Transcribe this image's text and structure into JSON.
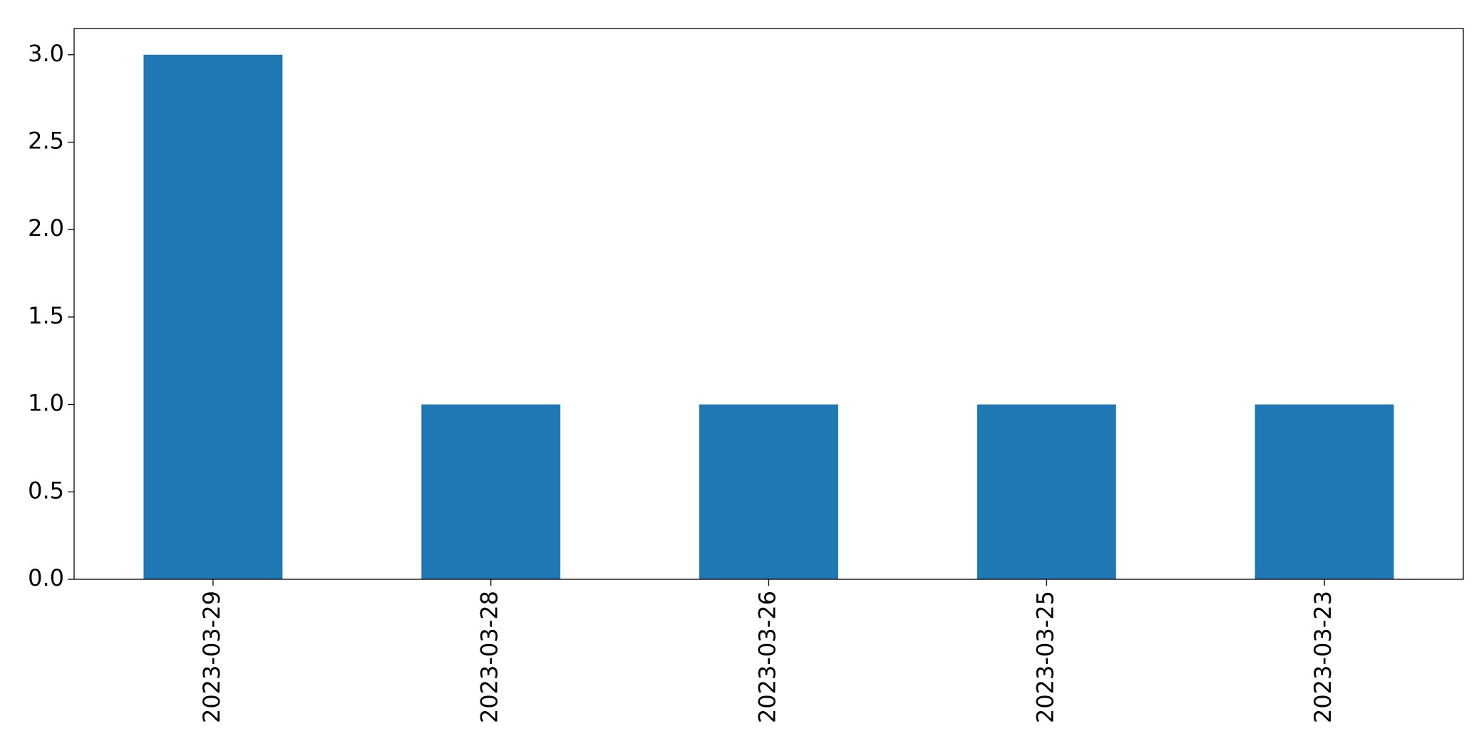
{
  "chart_data": {
    "type": "bar",
    "categories": [
      "2023-03-29",
      "2023-03-28",
      "2023-03-26",
      "2023-03-25",
      "2023-03-23"
    ],
    "values": [
      3,
      1,
      1,
      1,
      1
    ],
    "color": "#1f77b4",
    "ylim": [
      0,
      3.15
    ],
    "yticks": [
      {
        "value": 0,
        "label": "0.0"
      },
      0.5,
      {
        "value": 1,
        "label": "1.0"
      },
      1.5,
      {
        "value": 2,
        "label": "2.0"
      },
      2.5,
      {
        "value": 3,
        "label": "3.0"
      }
    ],
    "grid": false
  }
}
